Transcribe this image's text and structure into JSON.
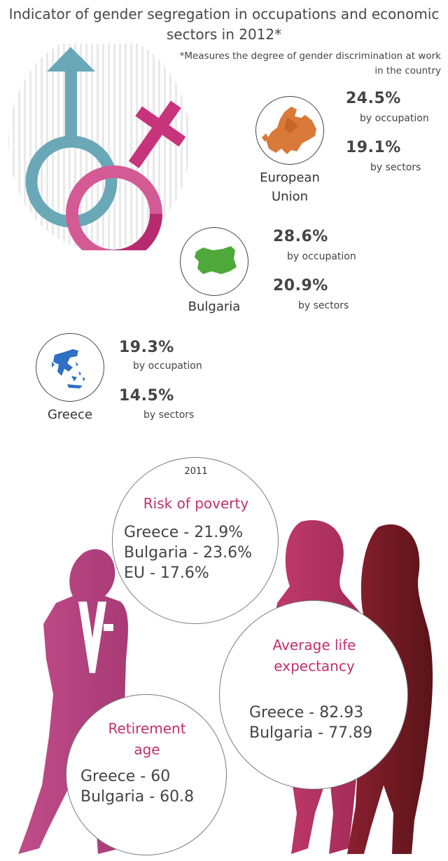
{
  "title_lines": [
    "Indicator of gender segregation in occupations and economic",
    "sectors in 2012*"
  ],
  "footnote_lines": [
    "*Measures the degree of gender discrimination at work",
    "in the country"
  ],
  "regions": {
    "eu": {
      "label_lines": [
        "European",
        "Union"
      ],
      "occupation_value": "24.5%",
      "occupation_label": "by occupation",
      "sectors_value": "19.1%",
      "sectors_label": "by sectors",
      "map_icon": "europe-map-icon",
      "map_color": "#d97a3a"
    },
    "bulgaria": {
      "label": "Bulgaria",
      "occupation_value": "28.6%",
      "occupation_label": "by occupation",
      "sectors_value": "20.9%",
      "sectors_label": "by sectors",
      "map_icon": "bulgaria-map-icon",
      "map_color": "#4fa83a"
    },
    "greece": {
      "label": "Greece",
      "occupation_value": "19.3%",
      "occupation_label": "by occupation",
      "sectors_value": "14.5%",
      "sectors_label": "by sectors",
      "map_icon": "greece-map-icon",
      "map_color": "#2f6fc4"
    }
  },
  "poverty": {
    "year": "2011",
    "title": "Risk of poverty",
    "lines": [
      "Greece - 21.9%",
      "Bulgaria - 23.6%",
      "EU - 17.6%"
    ]
  },
  "life": {
    "title_lines": [
      "Average life",
      "expectancy"
    ],
    "lines": [
      "Greece - 82.93",
      "Bulgaria - 77.89"
    ]
  },
  "retirement": {
    "title_lines": [
      "Retirement",
      "age"
    ],
    "lines": [
      "Greece - 60",
      "Bulgaria - 60.8"
    ]
  },
  "colors": {
    "male_symbol": "#6aa8b8",
    "female_symbol": "#c8347c",
    "accent": "#c2306e",
    "silhouette_left": "#b8427f",
    "silhouette_mid": "#b5345f",
    "silhouette_right": "#6b1a22"
  },
  "icons": [
    "gender-symbols-icon",
    "europe-map-icon",
    "bulgaria-map-icon",
    "greece-map-icon",
    "women-silhouettes-icon"
  ]
}
